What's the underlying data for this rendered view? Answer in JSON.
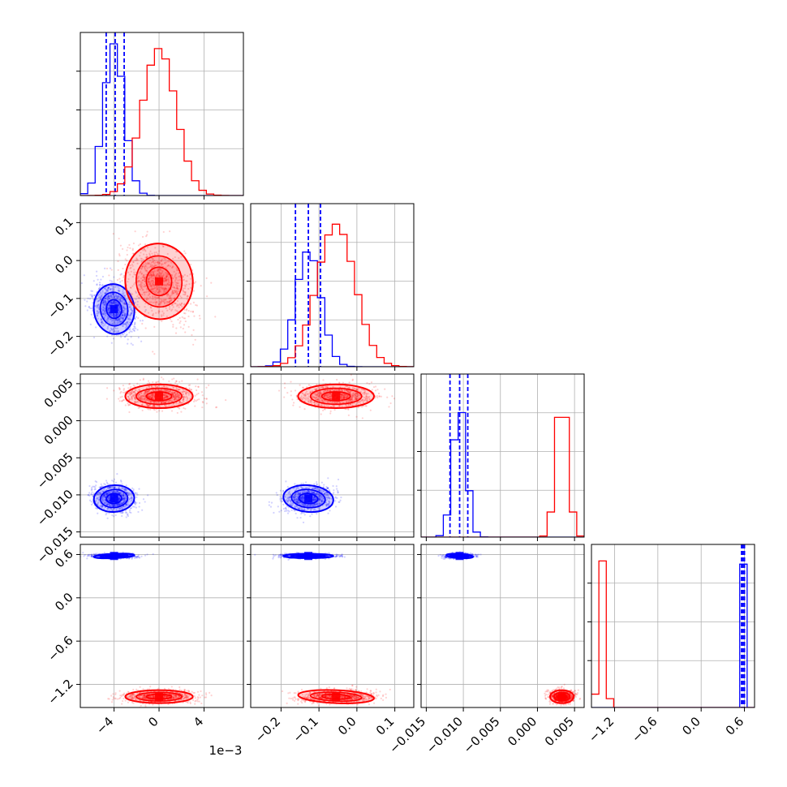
{
  "chart_data": {
    "type": "corner",
    "title": "",
    "grid": true,
    "colors": {
      "a": "#0000ff",
      "b": "#ff0000"
    },
    "offset_text": "1e−3",
    "dims": [
      {
        "range": [
          -7,
          7.5
        ],
        "ticks": [
          -4,
          0,
          4
        ],
        "tick_labels": [
          "−4",
          "0",
          "4"
        ]
      },
      {
        "range": [
          -0.28,
          0.15
        ],
        "ticks": [
          -0.2,
          -0.1,
          0.0,
          0.1
        ],
        "tick_labels": [
          "−0.2",
          "−0.1",
          "0.0",
          "0.1"
        ]
      },
      {
        "range": [
          -0.0157,
          0.0063
        ],
        "ticks": [
          -0.015,
          -0.01,
          -0.005,
          0.0,
          0.005
        ],
        "tick_labels": [
          "−0.015",
          "−0.010",
          "−0.005",
          "0.000",
          "0.005"
        ]
      },
      {
        "range": [
          -1.52,
          0.74
        ],
        "ticks": [
          -1.2,
          -0.6,
          0.0,
          0.6
        ],
        "tick_labels": [
          "−1.2",
          "−0.6",
          "0.0",
          "0.6"
        ]
      }
    ],
    "series": [
      {
        "color": "#0000ff",
        "mean": [
          -4.0,
          -0.128,
          -0.0105,
          0.58
        ],
        "sd": [
          0.9,
          0.033,
          0.0009,
          0.015
        ],
        "quantiles": [
          [
            -4.7,
            -3.9,
            -3.1
          ],
          [
            -0.162,
            -0.128,
            -0.096
          ],
          [
            -0.0118,
            -0.0105,
            -0.0094
          ],
          [
            0.56,
            0.58,
            0.6
          ]
        ],
        "corr": {
          "1-0": -0.3,
          "2-0": -0.15,
          "2-1": 0.2,
          "3-0": -0.1,
          "3-1": 0.0,
          "3-2": 0.15
        },
        "hist_scale": [
          0.98,
          0.75,
          0.85,
          1.0
        ]
      },
      {
        "color": "#ff0000",
        "mean": [
          0.0,
          -0.055,
          0.0033,
          -1.37
        ],
        "sd": [
          1.5,
          0.05,
          0.0008,
          0.045
        ],
        "quantiles": [],
        "corr": {
          "1-0": -0.3,
          "2-0": 0.0,
          "2-1": 0.0,
          "3-0": 0.0,
          "3-1": 0.1,
          "3-2": 0.0
        },
        "hist_scale": [
          0.95,
          0.92,
          0.94,
          0.95
        ]
      }
    ]
  }
}
